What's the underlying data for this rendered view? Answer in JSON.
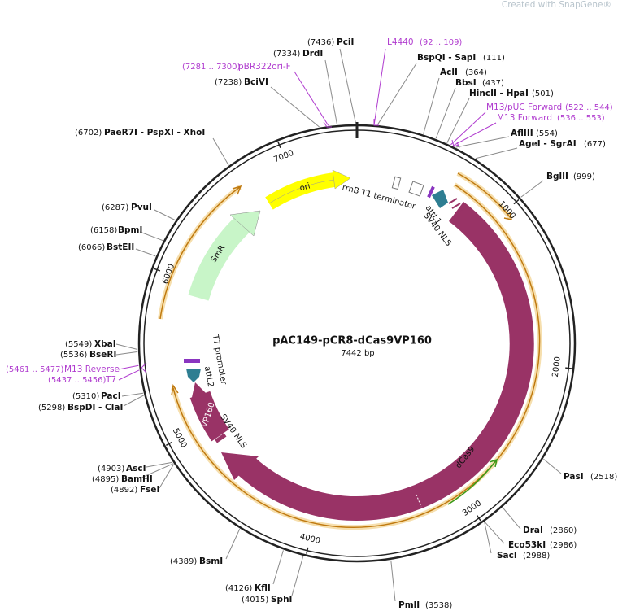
{
  "watermark": "Created with SnapGene®",
  "title": "pAC149-pCR8-dCas9VP160",
  "size": "7442 bp",
  "ticks": [
    1000,
    2000,
    3000,
    4000,
    5000,
    6000,
    7000
  ],
  "features": [
    "ori",
    "SmR",
    "rrnB T1 terminator",
    "attL1",
    "SV40 NLS",
    "T7 promoter",
    "attL2",
    "VP160",
    "SV40 NLS",
    "dCas9"
  ],
  "sites": [
    {
      "name": "PciI",
      "position": "(7436)"
    },
    {
      "name": "DrdI",
      "position": "(7334)"
    },
    {
      "name": "BciVI",
      "position": "(7238)"
    },
    {
      "name": "BspQI - SapI",
      "position": "(111)"
    },
    {
      "name": "AclI",
      "position": "(364)"
    },
    {
      "name": "BbsI",
      "position": "(437)"
    },
    {
      "name": "HincII - HpaI",
      "position": "(501)"
    },
    {
      "name": "AflIII",
      "position": "(554)"
    },
    {
      "name": "AgeI - SgrAI",
      "position": "(677)"
    },
    {
      "name": "BglII",
      "position": "(999)"
    },
    {
      "name": "PaeR7I - PspXI - XhoI",
      "position": "(6702)"
    },
    {
      "name": "PvuI",
      "position": "(6287)"
    },
    {
      "name": "BpmI",
      "position": "(6158)"
    },
    {
      "name": "BstEII",
      "position": "(6066)"
    },
    {
      "name": "XbaI",
      "position": "(5549)"
    },
    {
      "name": "BseRI",
      "position": "(5536)"
    },
    {
      "name": "PacI",
      "position": "(5310)"
    },
    {
      "name": "BspDI - ClaI",
      "position": "(5298)"
    },
    {
      "name": "AscI",
      "position": "(4903)"
    },
    {
      "name": "BamHI",
      "position": "(4895)"
    },
    {
      "name": "FseI",
      "position": "(4892)"
    },
    {
      "name": "BsmI",
      "position": "(4389)"
    },
    {
      "name": "KflI",
      "position": "(4126)"
    },
    {
      "name": "SphI",
      "position": "(4015)"
    },
    {
      "name": "PmlI",
      "position": "(3538)"
    },
    {
      "name": "SacI",
      "position": "(2988)"
    },
    {
      "name": "Eco53kI",
      "position": "(2986)"
    },
    {
      "name": "DraI",
      "position": "(2860)"
    },
    {
      "name": "PasI",
      "position": "(2518)"
    }
  ],
  "primers": [
    {
      "name": "L4440",
      "range": "(92 .. 109)"
    },
    {
      "name": "pBR322ori-F",
      "range": "(7281 .. 7300)"
    },
    {
      "name": "M13/pUC Forward",
      "range": "(522 .. 544)"
    },
    {
      "name": "M13 Forward",
      "range": "(536 .. 553)"
    },
    {
      "name": "M13 Reverse",
      "range": "(5461 .. 5477)"
    },
    {
      "name": "T7",
      "range": "(5437 .. 5456)"
    }
  ]
}
